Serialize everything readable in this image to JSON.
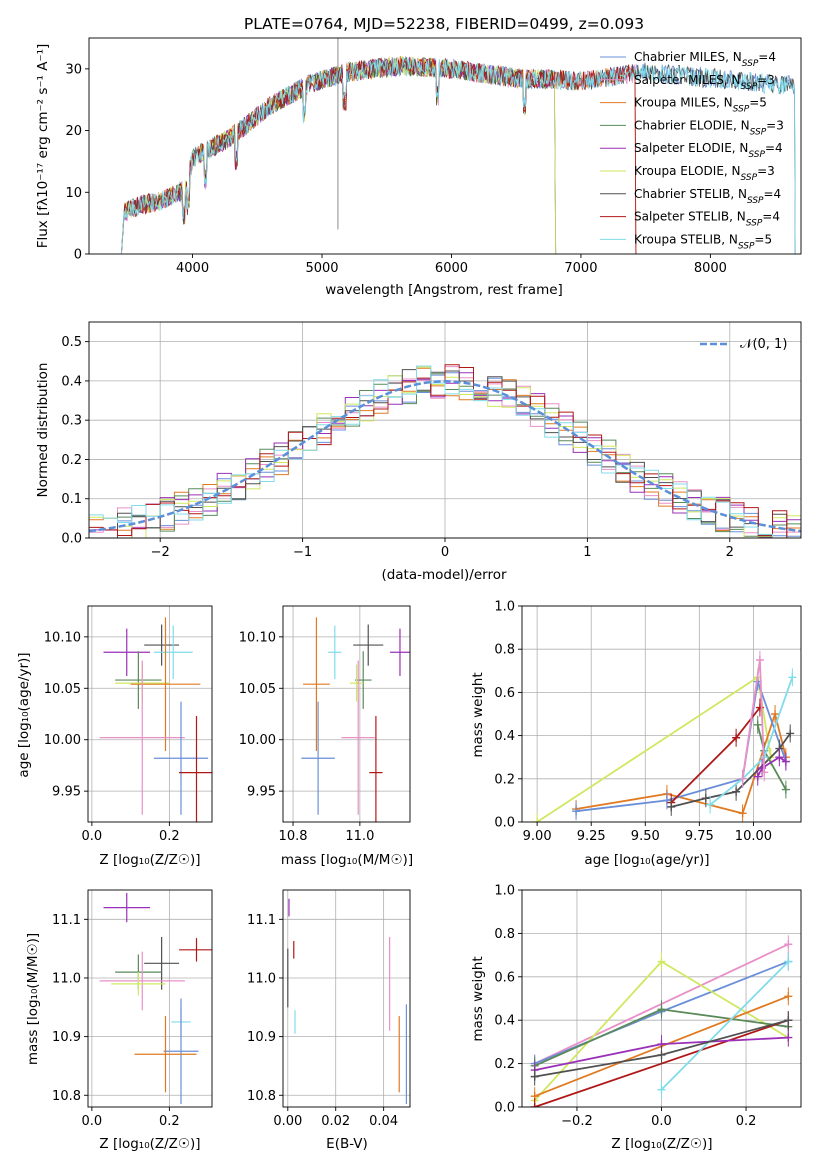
{
  "colors": {
    "chabrier_miles": "#6a8fd8",
    "salpeter_miles": "#e890c8",
    "kroupa_miles": "#e07a22",
    "chabrier_elodie": "#5a8a5a",
    "salpeter_elodie": "#9a30b8",
    "kroupa_elodie": "#cfe860",
    "chabrier_stelib": "#505050",
    "salpeter_stelib": "#b01818",
    "kroupa_stelib": "#80dcea",
    "gaussian": "#5b8fd9"
  },
  "chart_data": [
    {
      "id": "spectrum",
      "type": "line",
      "title": "PLATE=0764, MJD=52238, FIBERID=0499, z=0.093",
      "xlabel": "wavelength [Angstrom, rest frame]",
      "ylabel": "Flux [fλ10⁻¹⁷ erg cm⁻² s⁻¹ A⁻¹]",
      "xlim": [
        3200,
        8700
      ],
      "ylim": [
        0,
        35
      ],
      "xticks": [
        "4000",
        "5000",
        "6000",
        "7000",
        "8000"
      ],
      "xtickvals": [
        4000,
        5000,
        6000,
        7000,
        8000
      ],
      "yticks": [
        "0",
        "10",
        "20",
        "30"
      ],
      "ytickvals": [
        0,
        10,
        20,
        30
      ],
      "grid": false,
      "legend": "top-right",
      "continuum": {
        "x": [
          3450,
          3600,
          3750,
          3950,
          4000,
          4300,
          4600,
          4900,
          5200,
          5600,
          6000,
          6500,
          7000,
          7500,
          8000,
          8500
        ],
        "y": [
          6.5,
          8.0,
          8.5,
          10.5,
          15.5,
          19.0,
          24.0,
          27.5,
          29.5,
          30.5,
          30.0,
          28.5,
          28.0,
          29.5,
          28.5,
          27.5
        ]
      },
      "series": [
        {
          "name": "Chabrier MILES, N_SSP=4",
          "color": "#6a8fd8"
        },
        {
          "name": "Salpeter MILES, N_SSP=3",
          "color": "#e890c8"
        },
        {
          "name": "Kroupa MILES, N_SSP=5",
          "color": "#e07a22"
        },
        {
          "name": "Chabrier ELODIE, N_SSP=3",
          "color": "#5a8a5a"
        },
        {
          "name": "Salpeter ELODIE, N_SSP=4",
          "color": "#9a30b8"
        },
        {
          "name": "Kroupa ELODIE, N_SSP=3",
          "color": "#cfe860"
        },
        {
          "name": "Chabrier STELIB, N_SSP=4",
          "color": "#505050"
        },
        {
          "name": "Salpeter STELIB, N_SSP=4",
          "color": "#b01818"
        },
        {
          "name": "Kroupa STELIB, N_SSP=5",
          "color": "#80dcea"
        }
      ]
    },
    {
      "id": "residuals",
      "type": "line",
      "xlabel": "(data-model)/error",
      "ylabel": "Normed distribution",
      "xlim": [
        -2.5,
        2.5
      ],
      "ylim": [
        0,
        0.55
      ],
      "xticks": [
        "−2",
        "−1",
        "0",
        "1",
        "2"
      ],
      "xtickvals": [
        -2,
        -1,
        0,
        1,
        2
      ],
      "yticks": [
        "0.0",
        "0.1",
        "0.2",
        "0.3",
        "0.4",
        "0.5"
      ],
      "ytickvals": [
        0,
        0.1,
        0.2,
        0.3,
        0.4,
        0.5
      ],
      "grid": true,
      "legend": "top-right",
      "gaussian_label": "𝒩(0, 1)",
      "step_series_colors": [
        "#6a8fd8",
        "#e890c8",
        "#e07a22",
        "#5a8a5a",
        "#9a30b8",
        "#cfe860",
        "#505050",
        "#b01818",
        "#80dcea"
      ]
    },
    {
      "id": "age_vs_z",
      "type": "scatter",
      "xlabel": "Z [log₁₀(Z/Z☉)]",
      "ylabel": "age  [log₁₀(age/yr)]",
      "xlim": [
        -0.01,
        0.31
      ],
      "ylim": [
        9.92,
        10.13
      ],
      "xticks": [
        "0.0",
        "0.2"
      ],
      "xtickvals": [
        0,
        0.2
      ],
      "yticks": [
        "9.95",
        "10.00",
        "10.05",
        "10.10"
      ],
      "ytickvals": [
        9.95,
        10.0,
        10.05,
        10.1
      ],
      "grid": true,
      "points": [
        {
          "c": "#9a30b8",
          "x": 0.09,
          "y": 10.085,
          "ex": 0.06,
          "ey": 0.023
        },
        {
          "c": "#505050",
          "x": 0.18,
          "y": 10.092,
          "ex": 0.045,
          "ey": 0.02
        },
        {
          "c": "#80dcea",
          "x": 0.21,
          "y": 10.085,
          "ex": 0.05,
          "ey": 0.026
        },
        {
          "c": "#5a8a5a",
          "x": 0.12,
          "y": 10.058,
          "ex": 0.06,
          "ey": 0.028
        },
        {
          "c": "#cfe860",
          "x": 0.13,
          "y": 10.055,
          "ex": 0.07,
          "ey": 0.018
        },
        {
          "c": "#e07a22",
          "x": 0.19,
          "y": 10.054,
          "ex": 0.09,
          "ey": 0.065
        },
        {
          "c": "#e890c8",
          "x": 0.13,
          "y": 10.002,
          "ex": 0.11,
          "ey": 0.075
        },
        {
          "c": "#6a8fd8",
          "x": 0.23,
          "y": 9.982,
          "ex": 0.07,
          "ey": 0.055
        },
        {
          "c": "#b01818",
          "x": 0.27,
          "y": 9.968,
          "ex": 0.045,
          "ey": 0.055
        }
      ]
    },
    {
      "id": "age_vs_mass",
      "type": "scatter",
      "xlabel": "mass [log₁₀(M/M☉)]",
      "ylabel": "",
      "xlim": [
        10.77,
        11.15
      ],
      "ylim": [
        9.92,
        10.13
      ],
      "xticks": [
        "10.8",
        "11.0"
      ],
      "xtickvals": [
        10.8,
        11.0
      ],
      "yticks": [
        "9.95",
        "10.00",
        "10.05",
        "10.10"
      ],
      "ytickvals": [
        9.95,
        10.0,
        10.05,
        10.1
      ],
      "grid": true,
      "points": [
        {
          "c": "#9a30b8",
          "x": 11.12,
          "y": 10.085,
          "ex": 0.03,
          "ey": 0.023
        },
        {
          "c": "#505050",
          "x": 11.025,
          "y": 10.092,
          "ex": 0.045,
          "ey": 0.02
        },
        {
          "c": "#80dcea",
          "x": 10.925,
          "y": 10.085,
          "ex": 0.02,
          "ey": 0.026
        },
        {
          "c": "#5a8a5a",
          "x": 11.01,
          "y": 10.058,
          "ex": 0.025,
          "ey": 0.028
        },
        {
          "c": "#cfe860",
          "x": 10.99,
          "y": 10.055,
          "ex": 0.02,
          "ey": 0.018
        },
        {
          "c": "#e07a22",
          "x": 10.87,
          "y": 10.054,
          "ex": 0.04,
          "ey": 0.065
        },
        {
          "c": "#e890c8",
          "x": 10.995,
          "y": 10.002,
          "ex": 0.05,
          "ey": 0.075
        },
        {
          "c": "#6a8fd8",
          "x": 10.875,
          "y": 9.982,
          "ex": 0.05,
          "ey": 0.055
        },
        {
          "c": "#b01818",
          "x": 11.048,
          "y": 9.968,
          "ex": 0.02,
          "ey": 0.055
        }
      ]
    },
    {
      "id": "mass_vs_z",
      "type": "scatter",
      "xlabel": "Z [log₁₀(Z/Z☉)]",
      "ylabel": "mass [log₁₀(M/M☉)]",
      "xlim": [
        -0.01,
        0.31
      ],
      "ylim": [
        10.78,
        11.15
      ],
      "xticks": [
        "0.0",
        "0.2"
      ],
      "xtickvals": [
        0,
        0.2
      ],
      "yticks": [
        "10.8",
        "10.9",
        "11.0",
        "11.1"
      ],
      "ytickvals": [
        10.8,
        10.9,
        11.0,
        11.1
      ],
      "grid": true,
      "points": [
        {
          "c": "#9a30b8",
          "x": 0.09,
          "y": 11.12,
          "ex": 0.06,
          "ey": 0.025
        },
        {
          "c": "#505050",
          "x": 0.18,
          "y": 11.025,
          "ex": 0.045,
          "ey": 0.045
        },
        {
          "c": "#5a8a5a",
          "x": 0.12,
          "y": 11.01,
          "ex": 0.06,
          "ey": 0.03
        },
        {
          "c": "#e890c8",
          "x": 0.13,
          "y": 10.995,
          "ex": 0.11,
          "ey": 0.05
        },
        {
          "c": "#cfe860",
          "x": 0.12,
          "y": 10.99,
          "ex": 0.07,
          "ey": 0.02
        },
        {
          "c": "#b01818",
          "x": 0.27,
          "y": 11.048,
          "ex": 0.045,
          "ey": 0.02
        },
        {
          "c": "#80dcea",
          "x": 0.23,
          "y": 10.925,
          "ex": 0.025,
          "ey": 0.025
        },
        {
          "c": "#6a8fd8",
          "x": 0.23,
          "y": 10.875,
          "ex": 0.045,
          "ey": 0.09
        },
        {
          "c": "#e07a22",
          "x": 0.19,
          "y": 10.87,
          "ex": 0.08,
          "ey": 0.065
        }
      ]
    },
    {
      "id": "mass_vs_ebv",
      "type": "scatter",
      "xlabel": "E(B-V)",
      "ylabel": "",
      "xlim": [
        -0.002,
        0.051
      ],
      "ylim": [
        10.78,
        11.15
      ],
      "xticks": [
        "0.00",
        "0.02",
        "0.04"
      ],
      "xtickvals": [
        0,
        0.02,
        0.04
      ],
      "yticks": [
        "10.8",
        "10.9",
        "11.0",
        "11.1"
      ],
      "ytickvals": [
        10.8,
        10.9,
        11.0,
        11.1
      ],
      "grid": true,
      "points": [
        {
          "c": "#9a30b8",
          "x": 0.0005,
          "y": 11.12,
          "ex": 0,
          "ey": 0.015
        },
        {
          "c": "#505050",
          "x": 0.0,
          "y": 11.0,
          "ex": 0,
          "ey": 0.05
        },
        {
          "c": "#b01818",
          "x": 0.0025,
          "y": 11.048,
          "ex": 0,
          "ey": 0.015
        },
        {
          "c": "#80dcea",
          "x": 0.003,
          "y": 10.925,
          "ex": 0,
          "ey": 0.02
        },
        {
          "c": "#e890c8",
          "x": 0.0425,
          "y": 10.99,
          "ex": 0,
          "ey": 0.08
        },
        {
          "c": "#e07a22",
          "x": 0.0465,
          "y": 10.87,
          "ex": 0,
          "ey": 0.065
        },
        {
          "c": "#6a8fd8",
          "x": 0.0495,
          "y": 10.87,
          "ex": 0,
          "ey": 0.085
        }
      ]
    },
    {
      "id": "weight_vs_age",
      "type": "line",
      "xlabel": "age  [log₁₀(age/yr)]",
      "ylabel": "mass weight",
      "xlim": [
        8.93,
        10.22
      ],
      "ylim": [
        0,
        1
      ],
      "xticks": [
        "9.00",
        "9.25",
        "9.50",
        "9.75",
        "10.00"
      ],
      "xtickvals": [
        9.0,
        9.25,
        9.5,
        9.75,
        10.0
      ],
      "yticks": [
        "0.0",
        "0.2",
        "0.4",
        "0.6",
        "0.8",
        "1.0"
      ],
      "ytickvals": [
        0,
        0.2,
        0.4,
        0.6,
        0.8,
        1.0
      ],
      "grid": true,
      "series": [
        {
          "c": "#cfe860",
          "x": [
            9.0,
            10.02,
            10.08
          ],
          "y": [
            0.0,
            0.67,
            0.3
          ]
        },
        {
          "c": "#e07a22",
          "x": [
            9.18,
            9.6,
            9.95,
            10.1,
            10.15
          ],
          "y": [
            0.06,
            0.13,
            0.04,
            0.5,
            0.3
          ]
        },
        {
          "c": "#6a8fd8",
          "x": [
            9.18,
            9.6,
            9.95,
            10.02,
            10.15
          ],
          "y": [
            0.05,
            0.1,
            0.2,
            0.65,
            0.28
          ]
        },
        {
          "c": "#b01818",
          "x": [
            9.62,
            9.92,
            10.03
          ],
          "y": [
            0.09,
            0.39,
            0.53
          ]
        },
        {
          "c": "#505050",
          "x": [
            9.62,
            9.78,
            9.92,
            10.12,
            10.17
          ],
          "y": [
            0.07,
            0.11,
            0.14,
            0.34,
            0.41
          ]
        },
        {
          "c": "#5a8a5a",
          "x": [
            10.02,
            10.05,
            10.15
          ],
          "y": [
            0.45,
            0.33,
            0.15
          ]
        },
        {
          "c": "#80dcea",
          "x": [
            9.8,
            9.95,
            10.05,
            10.18
          ],
          "y": [
            0.08,
            0.2,
            0.3,
            0.67
          ]
        },
        {
          "c": "#9a30b8",
          "x": [
            10.02,
            10.04,
            10.12,
            10.15
          ],
          "y": [
            0.21,
            0.25,
            0.3,
            0.28
          ]
        },
        {
          "c": "#e890c8",
          "x": [
            9.95,
            10.03,
            10.05
          ],
          "y": [
            0.2,
            0.75,
            0.23
          ]
        }
      ]
    },
    {
      "id": "weight_vs_z",
      "type": "line",
      "xlabel": "Z [log₁₀(Z/Z☉)]",
      "ylabel": "mass weight",
      "xlim": [
        -0.33,
        0.33
      ],
      "ylim": [
        0,
        1
      ],
      "xticks": [
        "−0.2",
        "0.0",
        "0.2"
      ],
      "xtickvals": [
        -0.2,
        0,
        0.2
      ],
      "yticks": [
        "0.0",
        "0.2",
        "0.4",
        "0.6",
        "0.8",
        "1.0"
      ],
      "ytickvals": [
        0,
        0.2,
        0.4,
        0.6,
        0.8,
        1.0
      ],
      "grid": true,
      "series": [
        {
          "c": "#e890c8",
          "x": [
            -0.3,
            0.3
          ],
          "y": [
            0.2,
            0.75
          ]
        },
        {
          "c": "#6a8fd8",
          "x": [
            -0.3,
            0.0,
            0.3
          ],
          "y": [
            0.2,
            0.44,
            0.67
          ]
        },
        {
          "c": "#cfe860",
          "x": [
            -0.3,
            0.0,
            0.3
          ],
          "y": [
            0.03,
            0.67,
            0.32
          ]
        },
        {
          "c": "#5a8a5a",
          "x": [
            -0.3,
            0.0,
            0.3
          ],
          "y": [
            0.19,
            0.45,
            0.37
          ]
        },
        {
          "c": "#e07a22",
          "x": [
            -0.3,
            0.3
          ],
          "y": [
            0.05,
            0.51
          ]
        },
        {
          "c": "#b01818",
          "x": [
            -0.3,
            0.3
          ],
          "y": [
            0.0,
            0.4
          ]
        },
        {
          "c": "#80dcea",
          "x": [
            0.0,
            0.3
          ],
          "y": [
            0.08,
            0.67
          ]
        },
        {
          "c": "#9a30b8",
          "x": [
            -0.3,
            0.0,
            0.3
          ],
          "y": [
            0.17,
            0.29,
            0.32
          ]
        },
        {
          "c": "#505050",
          "x": [
            -0.3,
            0.0,
            0.3
          ],
          "y": [
            0.14,
            0.24,
            0.4
          ]
        }
      ]
    }
  ]
}
